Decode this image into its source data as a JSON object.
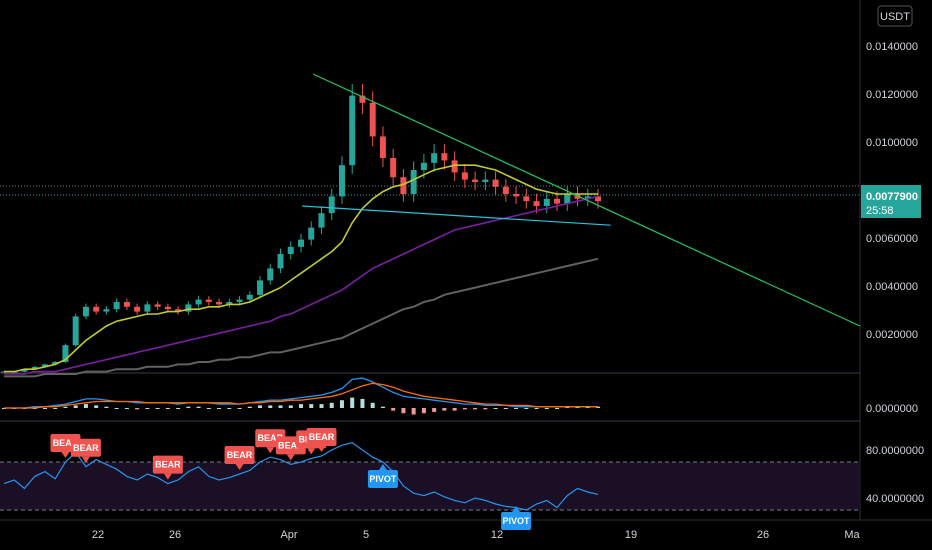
{
  "currency_button": "USDT",
  "price_badge": {
    "price": "0.0077900",
    "countdown": "25:58"
  },
  "chart_data": [
    {
      "type": "line",
      "panel": "price",
      "title": "",
      "ylabel": "",
      "ylim": [
        0.0,
        0.0155
      ],
      "y_ticks": [
        "0.0140000",
        "0.0120000",
        "0.0100000",
        "0.0060000",
        "0.0040000",
        "0.0020000"
      ],
      "x_ticks": [
        "22",
        "26",
        "Apr",
        "5",
        "12",
        "19",
        "26",
        "Ma"
      ],
      "last_price": 0.00779,
      "colors": {
        "up": "#26a69a",
        "down": "#ef5350",
        "ma_fast": "#c62828",
        "ma_mid": "#c0ca33",
        "ma_slow": "#7b1fa2",
        "ma_long": "#616161",
        "trend_upper": "#22c55e",
        "trend_lower": "#26c6da"
      },
      "series": [
        {
          "values": [
            0.0006,
            0.0006,
            0.0007,
            0.0008,
            0.0009,
            0.001,
            0.0017,
            0.0029,
            0.0033,
            0.0031,
            0.0032,
            0.0035,
            0.0033,
            0.0031,
            0.0034,
            0.0033,
            0.0032,
            0.0031,
            0.0034,
            0.0036,
            0.0035,
            0.0034,
            0.0035,
            0.0036,
            0.0038,
            0.0044,
            0.0049,
            0.0055,
            0.0058,
            0.0061,
            0.0066,
            0.0072,
            0.0079,
            0.0092,
            0.0121,
            0.0118,
            0.0104,
            0.0095,
            0.0087,
            0.008,
            0.009,
            0.0093,
            0.0097,
            0.0094,
            0.0089,
            0.0086,
            0.0085,
            0.0086,
            0.0083,
            0.008,
            0.0079,
            0.0077,
            0.0075,
            0.0078,
            0.0076,
            0.008,
            0.0078,
            0.0079,
            0.0077
          ]
        },
        {
          "values": [
            0.0006,
            0.0006,
            0.0007,
            0.0007,
            0.0008,
            0.0009,
            0.0011,
            0.0015,
            0.0019,
            0.0022,
            0.0025,
            0.0027,
            0.0028,
            0.0029,
            0.003,
            0.003,
            0.0031,
            0.0031,
            0.0032,
            0.0032,
            0.0033,
            0.0033,
            0.0034,
            0.0034,
            0.0035,
            0.0037,
            0.0039,
            0.0041,
            0.0044,
            0.0047,
            0.005,
            0.0053,
            0.0056,
            0.006,
            0.0068,
            0.0074,
            0.0078,
            0.0081,
            0.0083,
            0.0084,
            0.0086,
            0.0088,
            0.009,
            0.0091,
            0.0092,
            0.0092,
            0.0092,
            0.0091,
            0.009,
            0.0088,
            0.0086,
            0.0084,
            0.0082,
            0.0081,
            0.008,
            0.008,
            0.008,
            0.008,
            0.008
          ]
        },
        {
          "values": [
            0.0005,
            0.0005,
            0.0005,
            0.0006,
            0.0006,
            0.0006,
            0.0007,
            0.0008,
            0.0009,
            0.001,
            0.0011,
            0.0012,
            0.0013,
            0.0014,
            0.0015,
            0.0016,
            0.0017,
            0.0018,
            0.0019,
            0.002,
            0.0021,
            0.0022,
            0.0023,
            0.0024,
            0.0025,
            0.0026,
            0.0027,
            0.0029,
            0.003,
            0.0032,
            0.0034,
            0.0036,
            0.0038,
            0.004,
            0.0043,
            0.0046,
            0.0049,
            0.0051,
            0.0053,
            0.0055,
            0.0057,
            0.0059,
            0.0061,
            0.0063,
            0.0065,
            0.0066,
            0.0067,
            0.0068,
            0.0069,
            0.007,
            0.0071,
            0.0072,
            0.0073,
            0.0074,
            0.0075,
            0.0076,
            0.0077,
            0.0078,
            0.0079
          ]
        },
        {
          "values": [
            0.0004,
            0.0004,
            0.0004,
            0.0004,
            0.0005,
            0.0005,
            0.0005,
            0.0005,
            0.0006,
            0.0006,
            0.0006,
            0.0007,
            0.0007,
            0.0007,
            0.0008,
            0.0008,
            0.0008,
            0.0009,
            0.0009,
            0.001,
            0.001,
            0.0011,
            0.0011,
            0.0012,
            0.0012,
            0.0013,
            0.0014,
            0.0014,
            0.0015,
            0.0016,
            0.0017,
            0.0018,
            0.0019,
            0.002,
            0.0022,
            0.0024,
            0.0026,
            0.0028,
            0.003,
            0.0032,
            0.0033,
            0.0035,
            0.0036,
            0.0038,
            0.0039,
            0.004,
            0.0041,
            0.0042,
            0.0043,
            0.0044,
            0.0045,
            0.0046,
            0.0047,
            0.0048,
            0.0049,
            0.005,
            0.0051,
            0.0052,
            0.0053
          ]
        }
      ],
      "trendlines": [
        {
          "points": [
            [
              0.3,
              0.013
            ],
            [
              1.0,
              0.0025
            ]
          ]
        },
        {
          "points": [
            [
              0.27,
              0.0075
            ],
            [
              0.71,
              0.0067
            ]
          ]
        }
      ]
    },
    {
      "type": "bar",
      "panel": "macd",
      "y_ticks": [
        "0.0000000"
      ],
      "hist": [
        0,
        0,
        0,
        0,
        0,
        0,
        1,
        2,
        3,
        2,
        1,
        0,
        0,
        -1,
        0,
        0,
        0,
        0,
        1,
        1,
        0,
        0,
        0,
        0,
        1,
        2,
        2,
        2,
        2,
        3,
        3,
        3,
        4,
        6,
        8,
        7,
        4,
        1,
        -2,
        -4,
        -5,
        -4,
        -3,
        -2,
        -2,
        -1,
        -1,
        -1,
        0,
        0,
        0,
        0,
        0,
        0,
        0,
        1,
        1,
        1,
        1
      ],
      "macd": [
        0,
        0,
        0,
        1,
        1,
        2,
        3,
        5,
        7,
        7,
        6,
        5,
        5,
        4,
        4,
        4,
        4,
        3,
        4,
        4,
        4,
        3,
        3,
        3,
        4,
        5,
        6,
        6,
        7,
        8,
        9,
        10,
        12,
        15,
        22,
        23,
        20,
        16,
        12,
        9,
        8,
        7,
        6,
        5,
        4,
        3,
        3,
        2,
        2,
        2,
        1,
        1,
        1,
        1,
        1,
        1,
        1,
        1,
        1
      ],
      "signal": [
        0,
        0,
        0,
        0,
        1,
        1,
        2,
        3,
        4,
        5,
        5,
        5,
        5,
        5,
        4,
        4,
        4,
        4,
        4,
        4,
        4,
        4,
        4,
        3,
        4,
        4,
        5,
        5,
        6,
        6,
        7,
        8,
        9,
        11,
        14,
        17,
        19,
        18,
        16,
        13,
        11,
        9,
        8,
        7,
        6,
        5,
        4,
        3,
        3,
        2,
        2,
        2,
        1,
        1,
        1,
        1,
        1,
        1,
        1
      ]
    },
    {
      "type": "line",
      "panel": "rsi",
      "y_ticks": [
        "80.0000000",
        "40.0000000"
      ],
      "ylim": [
        25,
        95
      ],
      "bands": [
        70,
        30
      ],
      "values": [
        52,
        55,
        48,
        58,
        62,
        56,
        70,
        78,
        66,
        72,
        68,
        64,
        58,
        55,
        60,
        57,
        52,
        55,
        62,
        66,
        58,
        55,
        57,
        60,
        63,
        70,
        74,
        72,
        68,
        70,
        73,
        75,
        80,
        84,
        86,
        80,
        74,
        70,
        62,
        50,
        44,
        42,
        45,
        41,
        38,
        36,
        40,
        38,
        35,
        33,
        32,
        30,
        35,
        38,
        32,
        42,
        48,
        45,
        43
      ],
      "signals": [
        {
          "label": "BEAR",
          "x": 6
        },
        {
          "label": "BEAR",
          "x": 8
        },
        {
          "label": "BEAR",
          "x": 16
        },
        {
          "label": "BEAR",
          "x": 23
        },
        {
          "label": "BEAR",
          "x": 26
        },
        {
          "label": "BEAR",
          "x": 28
        },
        {
          "label": "BEAR",
          "x": 30
        },
        {
          "label": "BEAR",
          "x": 31
        },
        {
          "label": "PIVOT",
          "x": 37
        },
        {
          "label": "PIVOT",
          "x": 50
        }
      ]
    }
  ]
}
